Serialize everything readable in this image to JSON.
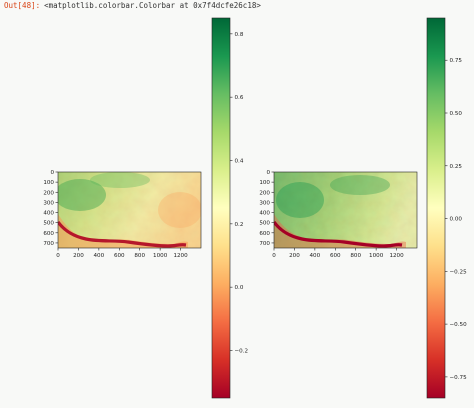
{
  "output": {
    "prompt": "Out[48]:",
    "repr": "<matplotlib.colorbar.Colorbar at 0x7f4dcfe26c18>"
  },
  "colormap": {
    "name": "RdYlGn",
    "stops": [
      "#a50026",
      "#d73027",
      "#f46d43",
      "#fdae61",
      "#fee08b",
      "#ffffbf",
      "#d9ef8b",
      "#a6d96a",
      "#66bd63",
      "#1a9850",
      "#006837"
    ]
  },
  "chart_data": [
    {
      "type": "heatmap",
      "xlim": [
        0,
        1400
      ],
      "ylim": [
        750,
        0
      ],
      "x_ticks": [
        "0",
        "200",
        "400",
        "600",
        "800",
        "1000",
        "1200"
      ],
      "y_ticks": [
        "0",
        "100",
        "200",
        "300",
        "400",
        "500",
        "600",
        "700"
      ],
      "colorbar": {
        "vmin": -0.35,
        "vmax": 0.85,
        "ticks": [
          "0.8",
          "0.6",
          "0.4",
          "0.2",
          "0.0",
          "−0.2"
        ]
      }
    },
    {
      "type": "heatmap",
      "xlim": [
        0,
        1400
      ],
      "ylim": [
        750,
        0
      ],
      "x_ticks": [
        "0",
        "200",
        "400",
        "600",
        "800",
        "1000",
        "1200"
      ],
      "y_ticks": [
        "0",
        "100",
        "200",
        "300",
        "400",
        "500",
        "600",
        "700"
      ],
      "colorbar": {
        "vmin": -0.85,
        "vmax": 0.95,
        "ticks": [
          "0.75",
          "0.50",
          "0.25",
          "0.00",
          "−0.25",
          "−0.50",
          "−0.75"
        ]
      }
    }
  ]
}
